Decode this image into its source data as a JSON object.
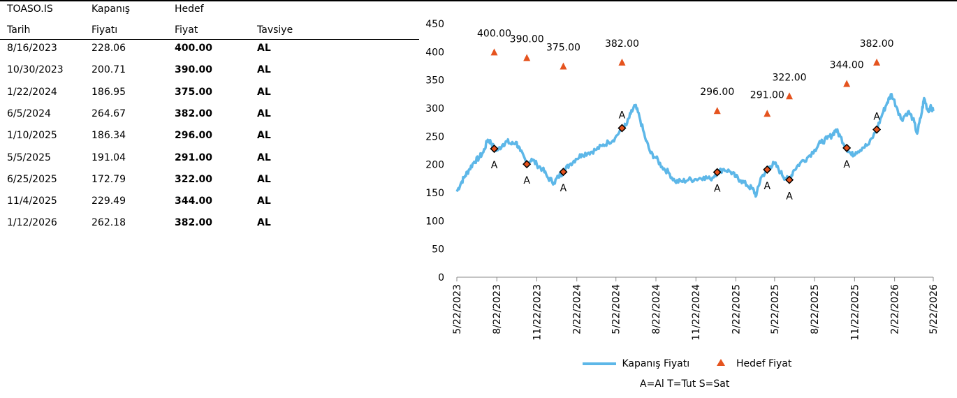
{
  "table": {
    "header_row1": [
      "TOASO.IS",
      "Kapanış",
      "Hedef",
      ""
    ],
    "header_row2": [
      "Tarih",
      "Fiyatı",
      "Fiyat",
      "Tavsiye"
    ],
    "rows": [
      {
        "date": "8/16/2023",
        "close": "228.06",
        "target": "400.00",
        "rec": "AL"
      },
      {
        "date": "10/30/2023",
        "close": "200.71",
        "target": "390.00",
        "rec": "AL"
      },
      {
        "date": "1/22/2024",
        "close": "186.95",
        "target": "375.00",
        "rec": "AL"
      },
      {
        "date": "6/5/2024",
        "close": "264.67",
        "target": "382.00",
        "rec": "AL"
      },
      {
        "date": "1/10/2025",
        "close": "186.34",
        "target": "296.00",
        "rec": "AL"
      },
      {
        "date": "5/5/2025",
        "close": "191.04",
        "target": "291.00",
        "rec": "AL"
      },
      {
        "date": "6/25/2025",
        "close": "172.79",
        "target": "322.00",
        "rec": "AL"
      },
      {
        "date": "11/4/2025",
        "close": "229.49",
        "target": "344.00",
        "rec": "AL"
      },
      {
        "date": "1/12/2026",
        "close": "262.18",
        "target": "382.00",
        "rec": "AL"
      }
    ]
  },
  "legend": {
    "close_label": "Kapanış Fiyatı",
    "target_label": "Hedef Fiyat",
    "note": "A=Al   T=Tut   S=Sat"
  },
  "colors": {
    "close_line": "#5DB7E8",
    "target_marker": "#E5531E",
    "point_marker": "#000000",
    "point_fill": "#E5531E"
  },
  "chart_data": {
    "type": "line",
    "title": "",
    "xlabel": "",
    "ylabel": "",
    "ylim": [
      0,
      450
    ],
    "yticks": [
      0,
      50,
      100,
      150,
      200,
      250,
      300,
      350,
      400,
      450
    ],
    "xlim": [
      "2023-05-22",
      "2026-05-22"
    ],
    "xtick_labels": [
      "5/22/2023",
      "8/22/2023",
      "11/22/2023",
      "2/22/2024",
      "5/22/2024",
      "8/22/2024",
      "11/22/2024",
      "2/22/2025",
      "5/22/2025",
      "8/22/2025",
      "11/22/2025",
      "2/22/2026",
      "5/22/2026"
    ],
    "xtick_dates": [
      "2023-05-22",
      "2023-08-22",
      "2023-11-22",
      "2024-02-22",
      "2024-05-22",
      "2024-08-22",
      "2024-11-22",
      "2025-02-22",
      "2025-05-22",
      "2025-08-22",
      "2025-11-22",
      "2026-02-22",
      "2026-05-22"
    ],
    "grid": false,
    "legend_position": "bottom",
    "series": [
      {
        "name": "Kapanış Fiyatı",
        "type": "line",
        "points": [
          [
            "2023-05-22",
            152
          ],
          [
            "2023-06-01",
            168
          ],
          [
            "2023-06-10",
            180
          ],
          [
            "2023-06-20",
            192
          ],
          [
            "2023-07-01",
            205
          ],
          [
            "2023-07-12",
            212
          ],
          [
            "2023-07-22",
            222
          ],
          [
            "2023-08-01",
            244
          ],
          [
            "2023-08-08",
            240
          ],
          [
            "2023-08-16",
            228
          ],
          [
            "2023-08-25",
            226
          ],
          [
            "2023-09-05",
            236
          ],
          [
            "2023-09-15",
            241
          ],
          [
            "2023-09-25",
            236
          ],
          [
            "2023-10-05",
            240
          ],
          [
            "2023-10-15",
            224
          ],
          [
            "2023-10-30",
            201
          ],
          [
            "2023-11-10",
            210
          ],
          [
            "2023-11-22",
            200
          ],
          [
            "2023-12-05",
            192
          ],
          [
            "2023-12-18",
            176
          ],
          [
            "2024-01-01",
            168
          ],
          [
            "2024-01-10",
            178
          ],
          [
            "2024-01-22",
            187
          ],
          [
            "2024-02-05",
            200
          ],
          [
            "2024-02-20",
            210
          ],
          [
            "2024-03-05",
            218
          ],
          [
            "2024-03-20",
            221
          ],
          [
            "2024-04-05",
            226
          ],
          [
            "2024-04-20",
            233
          ],
          [
            "2024-05-05",
            240
          ],
          [
            "2024-05-20",
            247
          ],
          [
            "2024-06-05",
            265
          ],
          [
            "2024-06-15",
            270
          ],
          [
            "2024-06-25",
            290
          ],
          [
            "2024-07-05",
            305
          ],
          [
            "2024-07-15",
            285
          ],
          [
            "2024-07-28",
            248
          ],
          [
            "2024-08-10",
            220
          ],
          [
            "2024-08-22",
            212
          ],
          [
            "2024-09-05",
            196
          ],
          [
            "2024-09-20",
            186
          ],
          [
            "2024-10-05",
            170
          ],
          [
            "2024-10-20",
            170
          ],
          [
            "2024-11-05",
            173
          ],
          [
            "2024-11-22",
            174
          ],
          [
            "2024-12-10",
            178
          ],
          [
            "2024-12-25",
            174
          ],
          [
            "2025-01-10",
            186
          ],
          [
            "2025-01-25",
            192
          ],
          [
            "2025-02-10",
            187
          ],
          [
            "2025-02-22",
            178
          ],
          [
            "2025-03-05",
            172
          ],
          [
            "2025-03-20",
            163
          ],
          [
            "2025-04-01",
            157
          ],
          [
            "2025-04-10",
            145
          ],
          [
            "2025-04-20",
            176
          ],
          [
            "2025-05-05",
            191
          ],
          [
            "2025-05-12",
            197
          ],
          [
            "2025-05-22",
            202
          ],
          [
            "2025-06-05",
            186
          ],
          [
            "2025-06-15",
            176
          ],
          [
            "2025-06-25",
            173
          ],
          [
            "2025-07-05",
            190
          ],
          [
            "2025-07-20",
            203
          ],
          [
            "2025-08-05",
            212
          ],
          [
            "2025-08-22",
            226
          ],
          [
            "2025-09-05",
            239
          ],
          [
            "2025-09-20",
            246
          ],
          [
            "2025-10-01",
            252
          ],
          [
            "2025-10-10",
            262
          ],
          [
            "2025-10-20",
            250
          ],
          [
            "2025-11-04",
            229
          ],
          [
            "2025-11-15",
            217
          ],
          [
            "2025-11-25",
            222
          ],
          [
            "2025-12-10",
            230
          ],
          [
            "2025-12-25",
            236
          ],
          [
            "2026-01-12",
            262
          ],
          [
            "2026-01-25",
            290
          ],
          [
            "2026-02-05",
            310
          ],
          [
            "2026-02-15",
            325
          ],
          [
            "2026-02-28",
            300
          ],
          [
            "2026-03-10",
            280
          ],
          [
            "2026-03-25",
            294
          ],
          [
            "2026-04-05",
            282
          ],
          [
            "2026-04-15",
            255
          ],
          [
            "2026-04-25",
            290
          ],
          [
            "2026-05-01",
            318
          ],
          [
            "2026-05-10",
            295
          ],
          [
            "2026-05-15",
            302
          ],
          [
            "2026-05-22",
            295
          ]
        ]
      },
      {
        "name": "Hedef Fiyat",
        "type": "scatter",
        "marker": "triangle",
        "points": [
          [
            "2023-08-16",
            400
          ],
          [
            "2023-10-30",
            390
          ],
          [
            "2024-01-22",
            375
          ],
          [
            "2024-06-05",
            382
          ],
          [
            "2025-01-10",
            296
          ],
          [
            "2025-05-05",
            291
          ],
          [
            "2025-06-25",
            322
          ],
          [
            "2025-11-04",
            344
          ],
          [
            "2026-01-12",
            382
          ]
        ],
        "labels": [
          "400.00",
          "390.00",
          "375.00",
          "382.00",
          "296.00",
          "291.00",
          "322.00",
          "344.00",
          "382.00"
        ]
      },
      {
        "type": "scatter",
        "marker": "diamond",
        "points": [
          [
            "2023-08-16",
            228.06
          ],
          [
            "2023-10-30",
            200.71
          ],
          [
            "2024-01-22",
            186.95
          ],
          [
            "2024-06-05",
            264.67
          ],
          [
            "2025-01-10",
            186.34
          ],
          [
            "2025-05-05",
            191.04
          ],
          [
            "2025-06-25",
            172.79
          ],
          [
            "2025-11-04",
            229.49
          ],
          [
            "2026-01-12",
            262.18
          ]
        ],
        "labels": [
          "A",
          "A",
          "A",
          "A",
          "A",
          "A",
          "A",
          "A",
          "A"
        ]
      }
    ]
  }
}
